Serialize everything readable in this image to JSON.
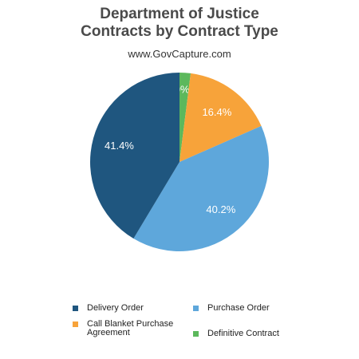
{
  "chart_data": {
    "type": "pie",
    "title_lines": [
      "Department of Justice",
      "Contracts by Contract Type"
    ],
    "subtitle": "www.GovCapture.com",
    "slices": [
      {
        "name": "Definitive Contract",
        "value": 2.0,
        "label": "2.0%",
        "color": "#5cb85c"
      },
      {
        "name": "Call Blanket Purchase Agreement",
        "value": 16.4,
        "label": "16.4%",
        "color": "#f7a33a"
      },
      {
        "name": "Purchase Order",
        "value": 40.2,
        "label": "40.2%",
        "color": "#5ea7db"
      },
      {
        "name": "Delivery Order",
        "value": 41.4,
        "label": "41.4%",
        "color": "#1f567f"
      }
    ],
    "start": "top",
    "direction": "clockwise",
    "legend": {
      "placement": "bottom",
      "items": [
        {
          "label_lines": [
            "Delivery Order"
          ],
          "color": "#1f567f"
        },
        {
          "label_lines": [
            "Purchase Order"
          ],
          "color": "#5ea7db"
        },
        {
          "label_lines": [
            "Call Blanket Purchase",
            "Agreement"
          ],
          "color": "#f7a33a"
        },
        {
          "label_lines": [
            "Definitive Contract"
          ],
          "color": "#5cb85c"
        }
      ]
    }
  }
}
